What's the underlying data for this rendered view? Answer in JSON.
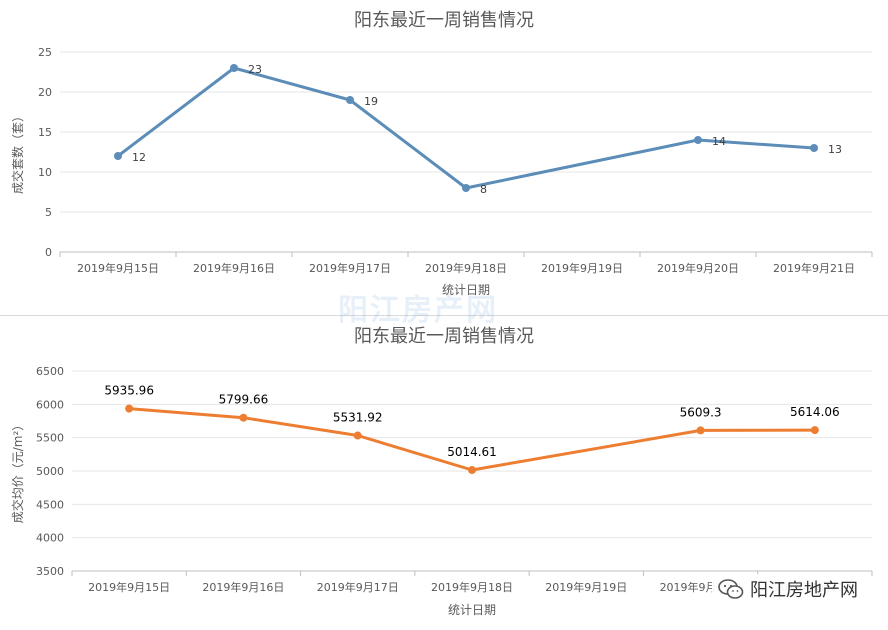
{
  "brand": {
    "watermark": "阳江房产网",
    "account_name": "阳江房地产网",
    "icon": "wechat-icon"
  },
  "chart_data": [
    {
      "type": "line",
      "title": "阳东最近一周销售情况",
      "xlabel": "统计日期",
      "ylabel": "成交套数（套）",
      "ylim": [
        0,
        25
      ],
      "yticks": [
        0,
        5,
        10,
        15,
        20,
        25
      ],
      "grid": true,
      "color": "#5b8db8",
      "categories": [
        "2019年9月15日",
        "2019年9月16日",
        "2019年9月17日",
        "2019年9月18日",
        "2019年9月19日",
        "2019年9月20日",
        "2019年9月21日"
      ],
      "values": [
        12,
        23,
        19,
        8,
        null,
        14,
        13
      ],
      "labels": [
        "12",
        "23",
        "19",
        "8",
        "",
        "14",
        "13"
      ]
    },
    {
      "type": "line",
      "title": "阳东最近一周销售情况",
      "xlabel": "统计日期",
      "ylabel": "成交均价（元/m²）",
      "ylim": [
        3500,
        6500
      ],
      "yticks": [
        3500,
        4000,
        4500,
        5000,
        5500,
        6000,
        6500
      ],
      "grid": true,
      "color": "#ed7d31",
      "categories": [
        "2019年9月15日",
        "2019年9月16日",
        "2019年9月17日",
        "2019年9月18日",
        "2019年9月19日",
        "2019年9月20日",
        "2019年9月21日"
      ],
      "values": [
        5935.96,
        5799.66,
        5531.92,
        5014.61,
        null,
        5609.3,
        5614.06
      ],
      "labels": [
        "5935.96",
        "5799.66",
        "5531.92",
        "5014.61",
        "",
        "5609.3",
        "5614.06"
      ]
    }
  ]
}
